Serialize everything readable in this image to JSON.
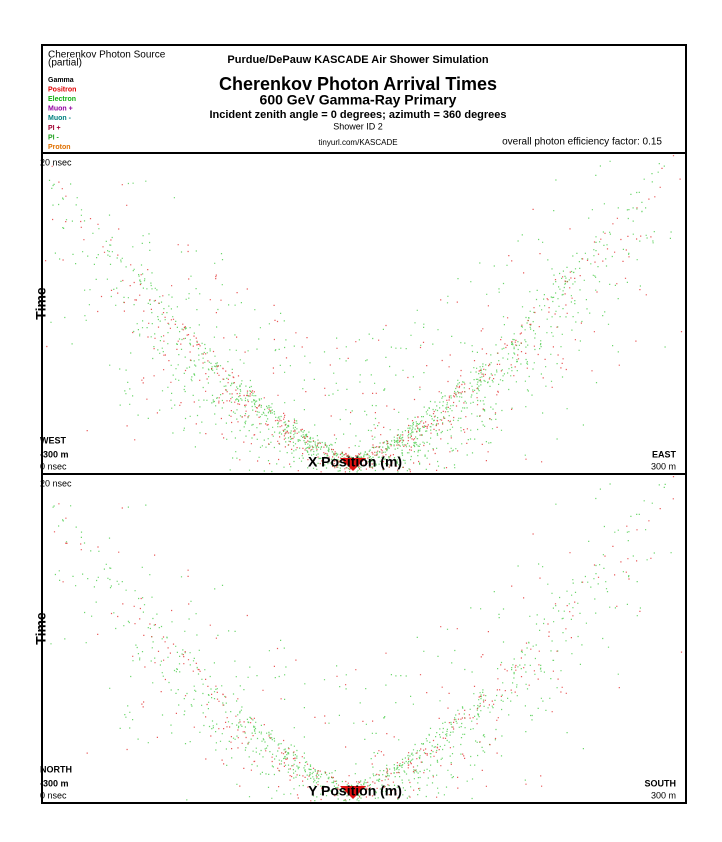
{
  "header": {
    "source_title": "Cherenkov Photon Source",
    "source_note": "(partial)",
    "legend": [
      {
        "label": "Gamma",
        "color": "#000000"
      },
      {
        "label": "Positron",
        "color": "#e00000"
      },
      {
        "label": "Electron",
        "color": "#10b010"
      },
      {
        "label": "Muon +",
        "color": "#9000a0"
      },
      {
        "label": "Muon -",
        "color": "#008080"
      },
      {
        "label": "PI +",
        "color": "#a00030"
      },
      {
        "label": "PI -",
        "color": "#20a020"
      },
      {
        "label": "Proton",
        "color": "#e07000"
      }
    ],
    "org": "Purdue/DePauw KASCADE Air Shower Simulation",
    "title": "Cherenkov Photon Arrival Times",
    "subtitle": "600 GeV Gamma-Ray Primary",
    "angles": "Incident zenith angle =  0 degrees;  azimuth =  360 degrees",
    "shower_id": "Shower ID 2",
    "url": "tinyurl.com/KASCADE",
    "efficiency": "overall photon efficiency factor: 0.15"
  },
  "panels": [
    {
      "time_max": "20 nsec",
      "y_label": "Time",
      "left_dir": "WEST",
      "left_pos": "-300 m",
      "time_min": "0 nsec",
      "x_label": "X Position (m)",
      "right_dir": "EAST",
      "right_pos": "300 m"
    },
    {
      "time_max": "20 nsec",
      "y_label": "Time",
      "left_dir": "NORTH",
      "left_pos": "-300 m",
      "time_min": "0 nsec",
      "x_label": "Y Position (m)",
      "right_dir": "SOUTH",
      "right_pos": "300 m"
    }
  ]
}
